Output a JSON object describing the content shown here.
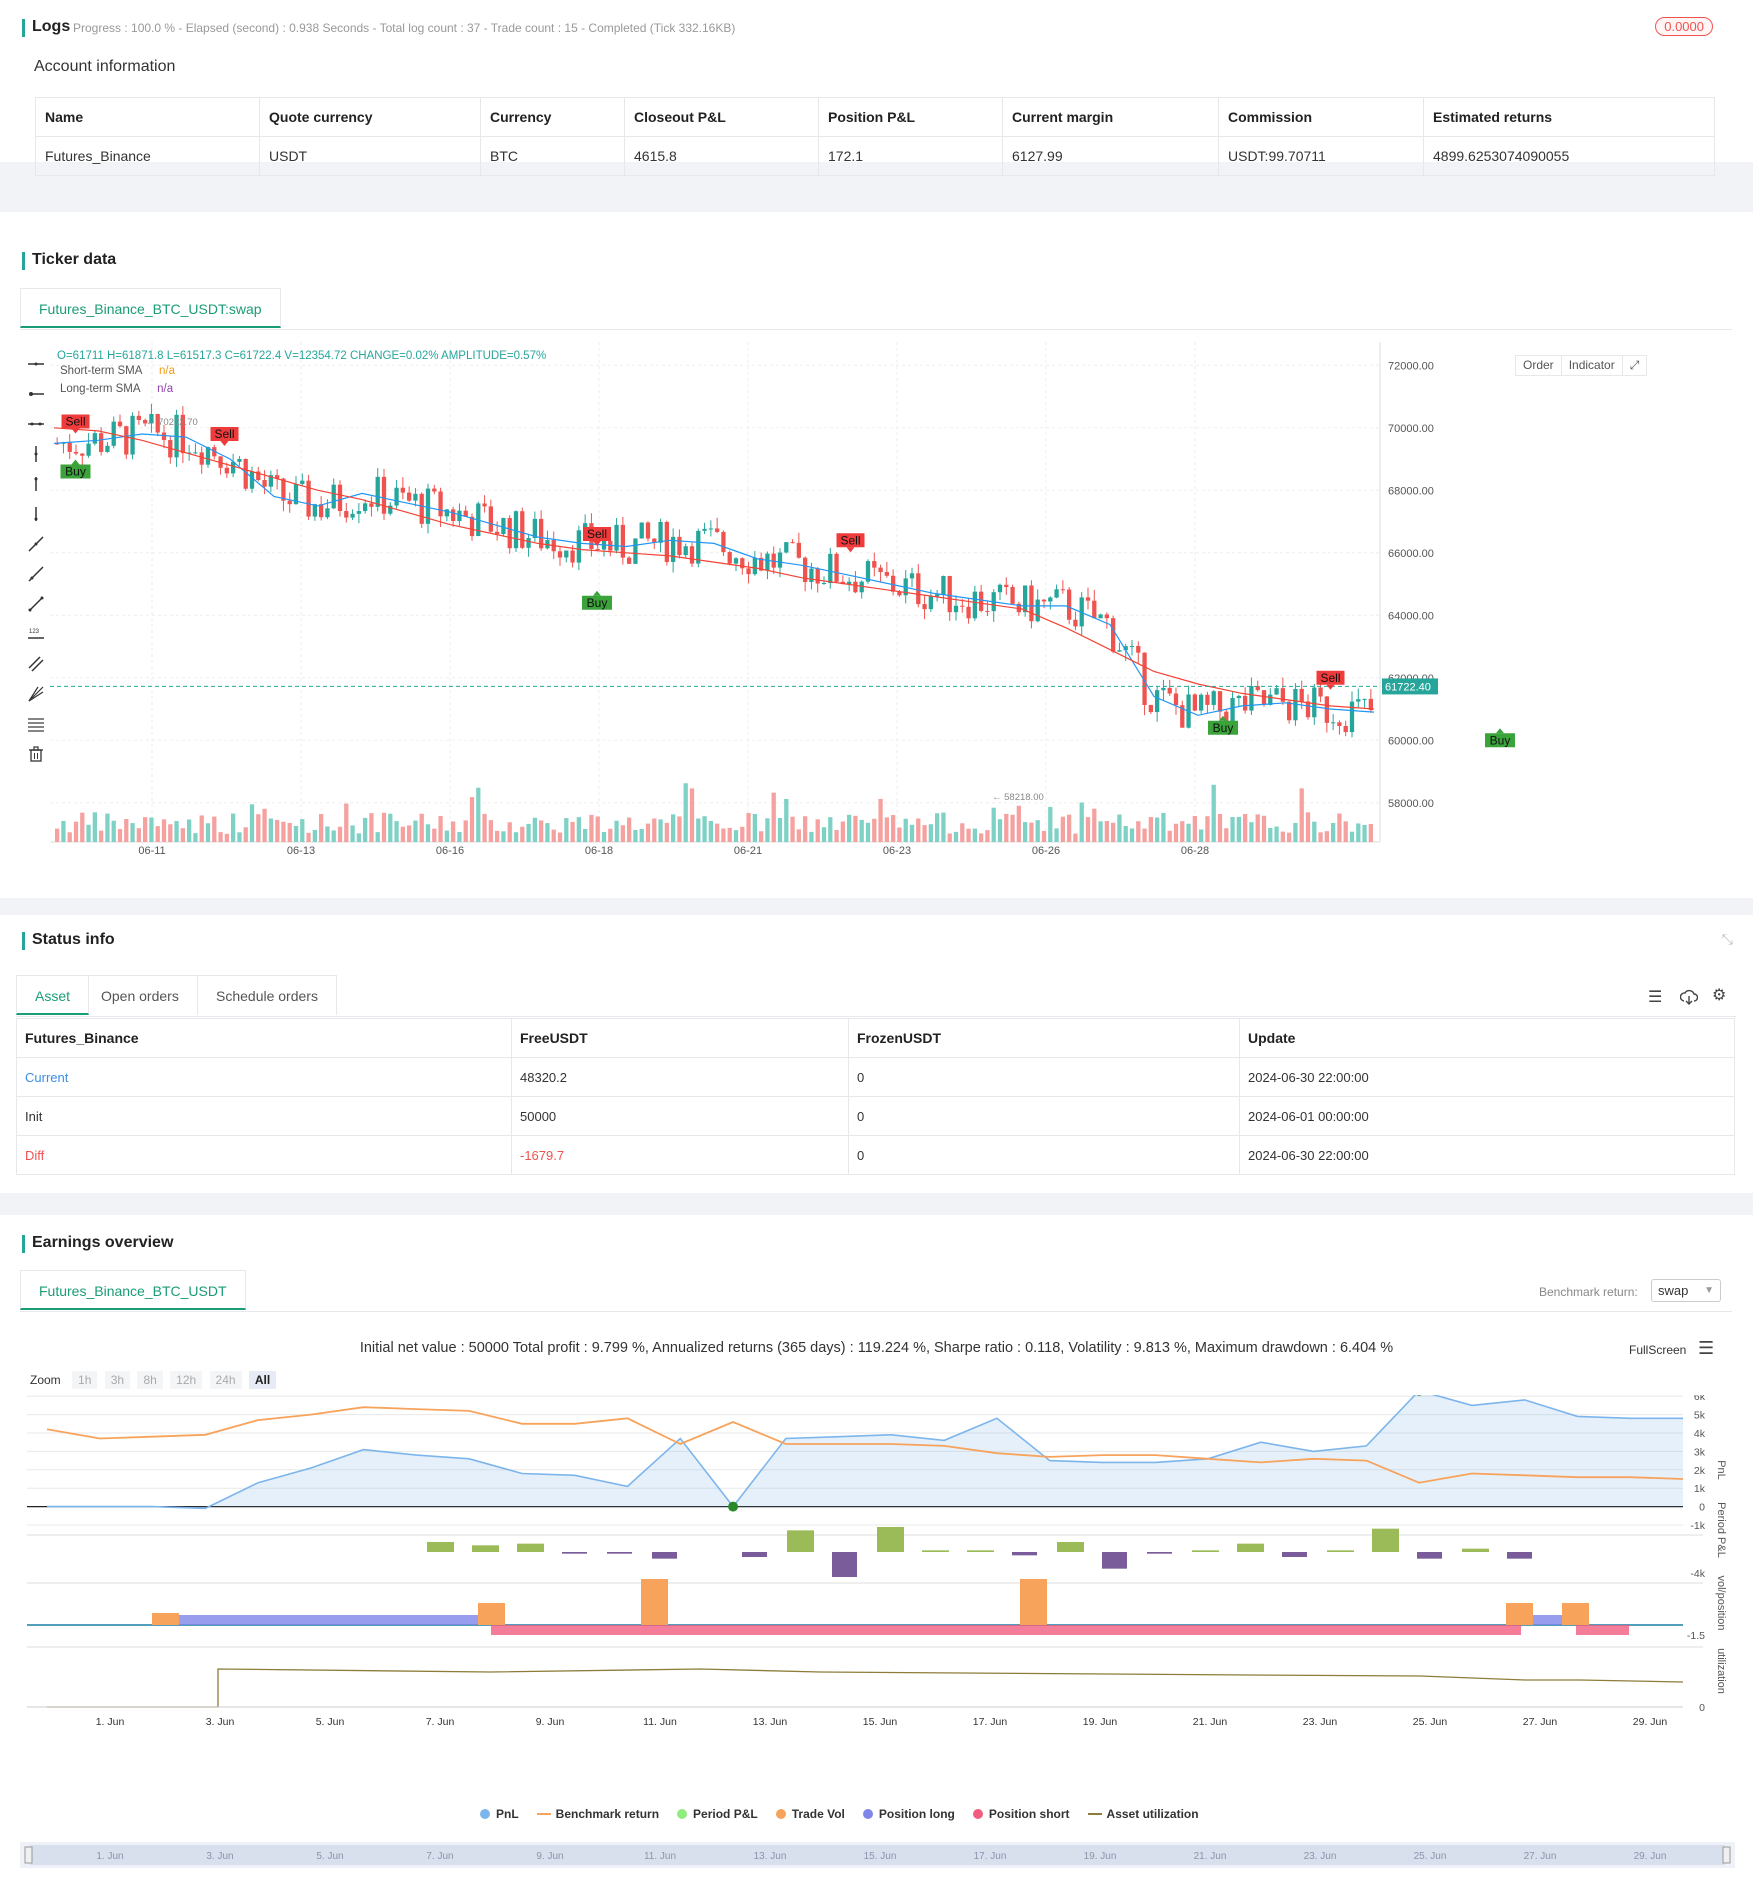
{
  "logs": {
    "title": "Logs",
    "summary": "Progress : 100.0 % - Elapsed (second) : 0.938  Seconds - Total log count : 37 - Trade count : 15 - Completed (Tick 332.16KB)",
    "badge": "0.0000"
  },
  "account": {
    "title": "Account information",
    "headers": [
      "Name",
      "Quote currency",
      "Currency",
      "Closeout P&L",
      "Position P&L",
      "Current margin",
      "Commission",
      "Estimated returns"
    ],
    "row": [
      "Futures_Binance",
      "USDT",
      "BTC",
      "4615.8",
      "172.1",
      "6127.99",
      "USDT:99.70711",
      "4899.6253074090055"
    ]
  },
  "ticker": {
    "title": "Ticker data",
    "tab": "Futures_Binance_BTC_USDT:swap",
    "ohlc": "O=61711 H=61871.8 L=61517.3 C=61722.4 V=12354.72 CHANGE=0.02% AMPLITUDE=0.57%",
    "short_sma_label": "Short-term SMA",
    "short_sma_value": "n/a",
    "long_sma_label": "Long-term SMA",
    "long_sma_value": "n/a",
    "order_btn": "Order",
    "indicator_btn": "Indicator",
    "last_price": "61722.40",
    "high_mark": "70222.70",
    "low_mark": "58218.00",
    "colors": {
      "up": "#26a69a",
      "down": "#ef5350",
      "short_sma": "#2196f3",
      "long_sma": "#f44336"
    }
  },
  "chart_data": [
    {
      "type": "candlestick",
      "title": "Futures_Binance_BTC_USDT:swap",
      "x_ticks": [
        "06-11",
        "06-13",
        "06-16",
        "06-18",
        "06-21",
        "06-23",
        "06-26",
        "06-28"
      ],
      "y_ticks": [
        "72000.00",
        "70000.00",
        "68000.00",
        "66000.00",
        "64000.00",
        "62000.00",
        "60000.00",
        "58000.00"
      ],
      "ylim": [
        57000,
        73000
      ],
      "series": [
        {
          "name": "Short-term SMA",
          "values": [
            69500,
            69600,
            69800,
            69700,
            69000,
            67800,
            67500,
            67900,
            67600,
            67300,
            66900,
            66500,
            66300,
            66200,
            66400,
            66300,
            65800,
            65600,
            65300,
            65000,
            64700,
            64500,
            64300,
            64300,
            63700,
            61400,
            60800,
            61100,
            61200,
            61000,
            60900
          ]
        },
        {
          "name": "Long-term SMA",
          "values": [
            70000,
            69900,
            69600,
            69200,
            68800,
            68400,
            68000,
            67700,
            67300,
            66900,
            66600,
            66300,
            66100,
            66000,
            65900,
            65700,
            65500,
            65200,
            65000,
            64800,
            64600,
            64400,
            64200,
            63600,
            62900,
            62200,
            61800,
            61500,
            61300,
            61100,
            61000
          ]
        }
      ],
      "signals": [
        {
          "label": "Sell",
          "date": "06-10",
          "price": 70200
        },
        {
          "label": "Buy",
          "date": "06-10",
          "price": 68600
        },
        {
          "label": "Sell",
          "date": "06-12",
          "price": 69800
        },
        {
          "label": "Sell",
          "date": "06-17",
          "price": 66600
        },
        {
          "label": "Buy",
          "date": "06-17",
          "price": 64400
        },
        {
          "label": "Sell",
          "date": "06-20",
          "price": 66400
        },
        {
          "label": "Buy",
          "date": "06-25",
          "price": 60400
        },
        {
          "label": "Sell",
          "date": "06-26",
          "price": 62000
        },
        {
          "label": "Buy",
          "date": "06-29",
          "price": 60000
        }
      ]
    },
    {
      "type": "line",
      "title": "PnL / Benchmark return",
      "x_ticks": [
        "1. Jun",
        "3. Jun",
        "5. Jun",
        "7. Jun",
        "9. Jun",
        "11. Jun",
        "13. Jun",
        "15. Jun",
        "17. Jun",
        "19. Jun",
        "21. Jun",
        "23. Jun",
        "25. Jun",
        "27. Jun",
        "29. Jun"
      ],
      "y_ticks": [
        "6k",
        "5k",
        "4k",
        "3k",
        "2k",
        "1k",
        "0",
        "-1k"
      ],
      "ylim": [
        -1000,
        6500
      ],
      "series": [
        {
          "name": "PnL",
          "values": [
            0,
            0,
            0,
            -100,
            1300,
            2100,
            3100,
            2800,
            2600,
            1800,
            1700,
            1100,
            3700,
            0,
            3700,
            3800,
            3900,
            3600,
            4800,
            2500,
            2400,
            2400,
            2600,
            3500,
            3000,
            3300,
            6300,
            5500,
            5800,
            4900,
            4800,
            4800
          ]
        },
        {
          "name": "Benchmark return",
          "values": [
            4200,
            3700,
            3800,
            3900,
            4700,
            5000,
            5400,
            5300,
            5200,
            4500,
            4500,
            4800,
            3400,
            4600,
            3400,
            3400,
            3400,
            3300,
            2900,
            2700,
            2800,
            2800,
            2600,
            2400,
            2600,
            2500,
            1300,
            1800,
            1700,
            1600,
            1600,
            1500
          ]
        }
      ]
    },
    {
      "type": "bar",
      "title": "Period P&L",
      "y_ticks": [
        "-4k"
      ],
      "values": [
        0,
        0,
        0,
        0,
        600,
        400,
        500,
        -100,
        -100,
        -400,
        0,
        -300,
        1300,
        -1500,
        1500,
        100,
        100,
        -200,
        600,
        -1000,
        -100,
        100,
        500,
        -300,
        100,
        1400,
        -400,
        200,
        -400
      ]
    },
    {
      "type": "area",
      "title": "vol/position",
      "y_ticks": [
        "-1.5"
      ]
    },
    {
      "type": "line",
      "title": "utilization",
      "y_ticks": [
        "0"
      ]
    }
  ],
  "status": {
    "title": "Status info",
    "tabs": [
      "Asset",
      "Open orders",
      "Schedule orders"
    ],
    "headers": [
      "Futures_Binance",
      "FreeUSDT",
      "FrozenUSDT",
      "Update"
    ],
    "rows": [
      [
        "Current",
        "48320.2",
        "0",
        "2024-06-30 22:00:00"
      ],
      [
        "Init",
        "50000",
        "0",
        "2024-06-01 00:00:00"
      ],
      [
        "Diff",
        "-1679.7",
        "0",
        "2024-06-30 22:00:00"
      ]
    ]
  },
  "earnings": {
    "title": "Earnings overview",
    "tab": "Futures_Binance_BTC_USDT",
    "benchmark_label": "Benchmark return:",
    "benchmark_value": "swap",
    "summary": "Initial net value : 50000 Total profit : 9.799 %, Annualized returns (365 days) : 119.224 %, Sharpe ratio : 0.118, Volatility : 9.813 %, Maximum drawdown : 6.404 %",
    "fullscreen": "FullScreen",
    "zoom_label": "Zoom",
    "zoom_options": [
      "1h",
      "3h",
      "8h",
      "12h",
      "24h",
      "All"
    ],
    "axis_labels": {
      "pnl": "PnL",
      "period": "Period P&L",
      "vol": "vol/position",
      "util": "utilization"
    },
    "legend": [
      "PnL",
      "Benchmark return",
      "Period P&L",
      "Trade Vol",
      "Position long",
      "Position short",
      "Asset utilization"
    ],
    "legend_colors": [
      "#7cb5ec",
      "#f7a35c",
      "#90ed7d",
      "#f7a35c",
      "#8085e9",
      "#f15c80",
      "#8d7c3a"
    ]
  }
}
